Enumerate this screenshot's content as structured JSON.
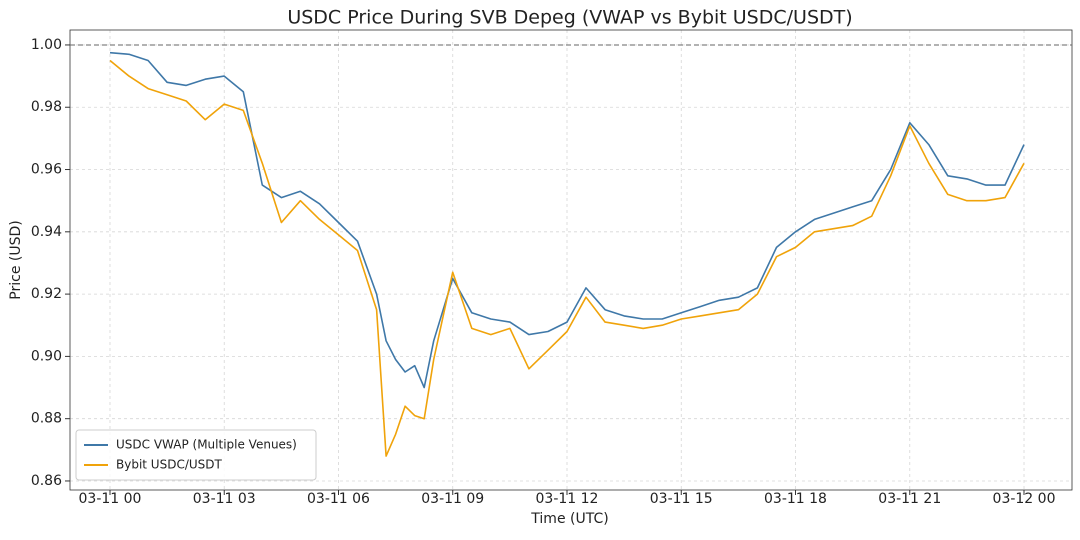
{
  "chart_data": {
    "type": "line",
    "title": "USDC Price During SVB Depeg (VWAP vs Bybit USDC/USDT)",
    "x_label": "Time (UTC)",
    "y_label": "Price (USD)",
    "x": [
      0,
      0.5,
      1,
      1.5,
      2,
      2.5,
      3,
      3.5,
      4,
      4.5,
      5,
      5.5,
      6,
      6.5,
      7,
      7.25,
      7.5,
      7.75,
      8,
      8.25,
      8.5,
      9,
      9.5,
      10,
      10.5,
      11,
      11.5,
      12,
      12.5,
      13,
      13.5,
      14,
      14.5,
      15,
      15.5,
      16,
      16.5,
      17,
      17.5,
      18,
      18.5,
      19,
      19.5,
      20,
      20.5,
      21,
      21.5,
      22,
      22.5,
      23,
      23.5,
      24
    ],
    "series": [
      {
        "name": "USDC VWAP (Multiple Venues)",
        "color": "#3f78a8",
        "values": [
          0.9975,
          0.997,
          0.995,
          0.988,
          0.987,
          0.989,
          0.99,
          0.985,
          0.955,
          0.951,
          0.953,
          0.949,
          0.943,
          0.937,
          0.92,
          0.905,
          0.899,
          0.895,
          0.897,
          0.89,
          0.905,
          0.925,
          0.914,
          0.912,
          0.911,
          0.907,
          0.908,
          0.911,
          0.922,
          0.915,
          0.913,
          0.912,
          0.912,
          0.914,
          0.916,
          0.918,
          0.919,
          0.922,
          0.935,
          0.94,
          0.944,
          0.946,
          0.948,
          0.95,
          0.96,
          0.975,
          0.968,
          0.958,
          0.957,
          0.955,
          0.955,
          0.968
        ]
      },
      {
        "name": "Bybit USDC/USDT",
        "color": "#f0a30a",
        "values": [
          0.995,
          0.99,
          0.986,
          0.984,
          0.982,
          0.976,
          0.981,
          0.979,
          0.962,
          0.943,
          0.95,
          0.944,
          0.939,
          0.934,
          0.915,
          0.868,
          0.875,
          0.884,
          0.881,
          0.88,
          0.899,
          0.927,
          0.909,
          0.907,
          0.909,
          0.896,
          0.902,
          0.908,
          0.919,
          0.911,
          0.91,
          0.909,
          0.91,
          0.912,
          0.913,
          0.914,
          0.915,
          0.92,
          0.932,
          0.935,
          0.94,
          0.941,
          0.942,
          0.945,
          0.958,
          0.974,
          0.962,
          0.952,
          0.95,
          0.95,
          0.951,
          0.962
        ]
      }
    ],
    "xlim": [
      -1.05,
      25.26
    ],
    "xticks": [
      {
        "value": 0,
        "label": "03-11 00"
      },
      {
        "value": 3,
        "label": "03-11 03"
      },
      {
        "value": 6,
        "label": "03-11 06"
      },
      {
        "value": 9,
        "label": "03-11 09"
      },
      {
        "value": 12,
        "label": "03-11 12"
      },
      {
        "value": 15,
        "label": "03-11 15"
      },
      {
        "value": 18,
        "label": "03-11 18"
      },
      {
        "value": 21,
        "label": "03-11 21"
      },
      {
        "value": 24,
        "label": "03-12 00"
      }
    ],
    "ylim": [
      0.8571,
      1.0048
    ],
    "yticks": [
      0.86,
      0.88,
      {
        "value": 0.9,
        "label": "0.90"
      },
      0.92,
      0.94,
      0.96,
      0.98,
      {
        "value": 1,
        "label": "1.00"
      }
    ],
    "hline": 1,
    "grid": true,
    "legend": "lower left"
  }
}
